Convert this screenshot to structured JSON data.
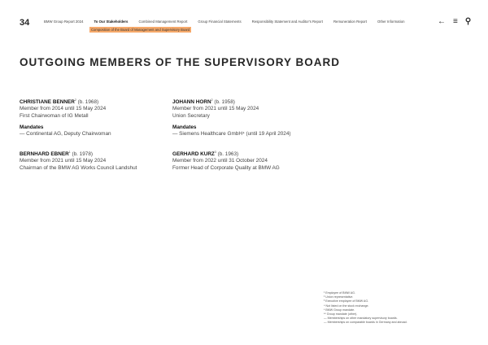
{
  "header": {
    "page_number": "34",
    "nav": [
      "BMW Group Report 2024",
      "To Our Stakeholders",
      "Combined Management Report",
      "Group Financial Statements",
      "Responsibility Statement and Auditor's Report",
      "Remuneration Report",
      "Other Information"
    ],
    "active_index": 1,
    "subsection": "Composition of the Board of Management and Supervisory Board",
    "highlight_color": "#f6a96a"
  },
  "title": "OUTGOING MEMBERS OF THE SUPERVISORY BOARD",
  "members": [
    {
      "name": "CHRISTIANE BENNER",
      "sup": "2",
      "born": "(b. 1968)",
      "term": "Member from 2014 until 15 May 2024",
      "role": "First Chairwoman of IG Metall",
      "mandates_label": "Mandates",
      "mandate": "—  Continental AG, Deputy Chairwoman"
    },
    {
      "name": "JOHANN HORN",
      "sup": "2",
      "born": "(b. 1958)",
      "term": "Member from 2021 until 15 May 2024",
      "role": "Union Secretary",
      "mandates_label": "Mandates",
      "mandate": "—  Siemens Healthcare GmbH⁴ (until 19 April 2024)"
    },
    {
      "name": "BERNHARD EBNER",
      "sup": "1",
      "born": "(b. 1978)",
      "term": "Member from 2021 until 15 May 2024",
      "role": "Chairman of the BMW AG Works Council Landshut"
    },
    {
      "name": "GERHARD KURZ",
      "sup": "3",
      "born": "(b. 1963)",
      "term": "Member from 2022 until 31 October 2024",
      "role": "Former Head of Corporate Quality at BMW AG"
    }
  ],
  "footnotes": [
    "¹  Employee of BMW AG.",
    "²  Union representative.",
    "³  Executive employee of BMW AG.",
    "⁴  Not listed on the stock exchange.",
    "*  BMW Group mandate.",
    "**  Group mandate (other).",
    "—  Memberships on other mandatory supervisory boards.",
    "—  Memberships on comparable boards in Germany and abroad."
  ]
}
